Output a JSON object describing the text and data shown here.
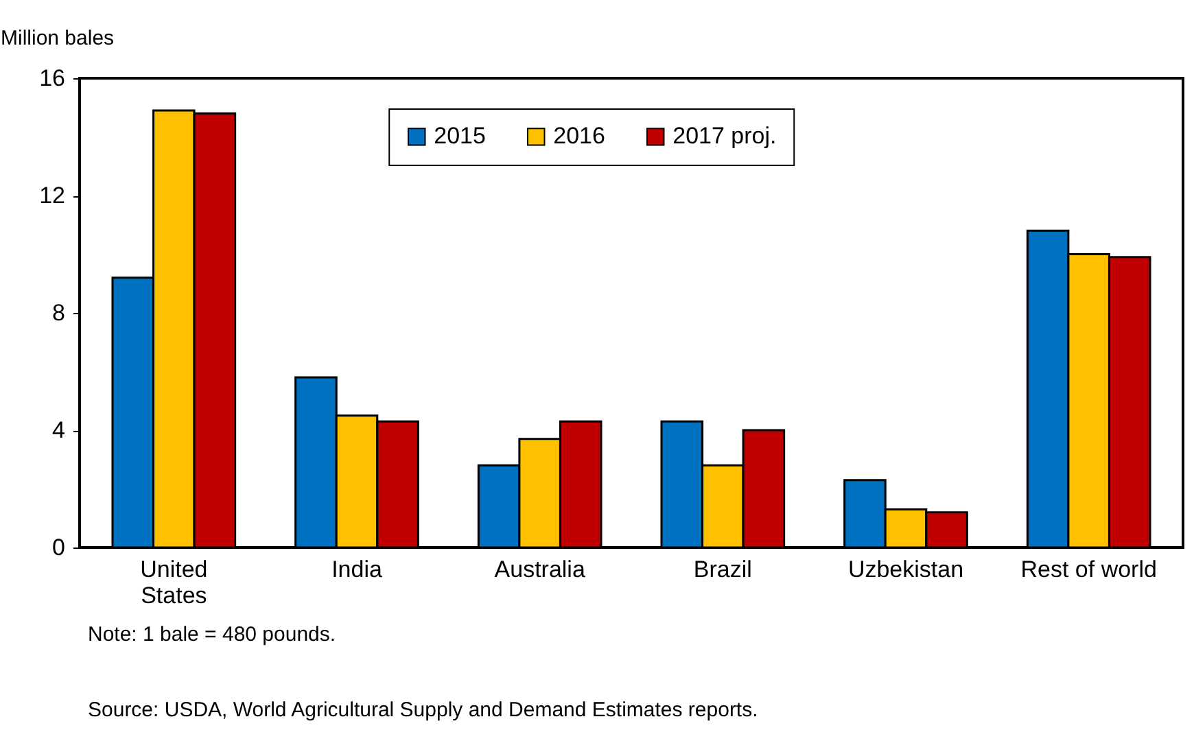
{
  "chart_data": {
    "type": "bar",
    "ylabel": "Million bales",
    "categories": [
      "United States",
      "India",
      "Australia",
      "Brazil",
      "Uzbekistan",
      "Rest of world"
    ],
    "series": [
      {
        "name": "2015",
        "color": "#0070c0",
        "values": [
          9.2,
          5.8,
          2.8,
          4.3,
          2.3,
          10.8
        ]
      },
      {
        "name": "2016",
        "color": "#ffc000",
        "values": [
          14.9,
          4.5,
          3.7,
          2.8,
          1.3,
          10.0
        ]
      },
      {
        "name": "2017 proj.",
        "color": "#c00000",
        "values": [
          14.8,
          4.3,
          4.3,
          4.0,
          1.2,
          9.9
        ]
      }
    ],
    "ylim": [
      0,
      16
    ],
    "yticks": [
      0,
      4,
      8,
      12,
      16
    ],
    "grid": false,
    "legend": "top",
    "annotations": [
      "Note: 1 bale = 480 pounds.",
      "Source:  USDA, World Agricultural Supply and Demand Estimates reports."
    ]
  }
}
